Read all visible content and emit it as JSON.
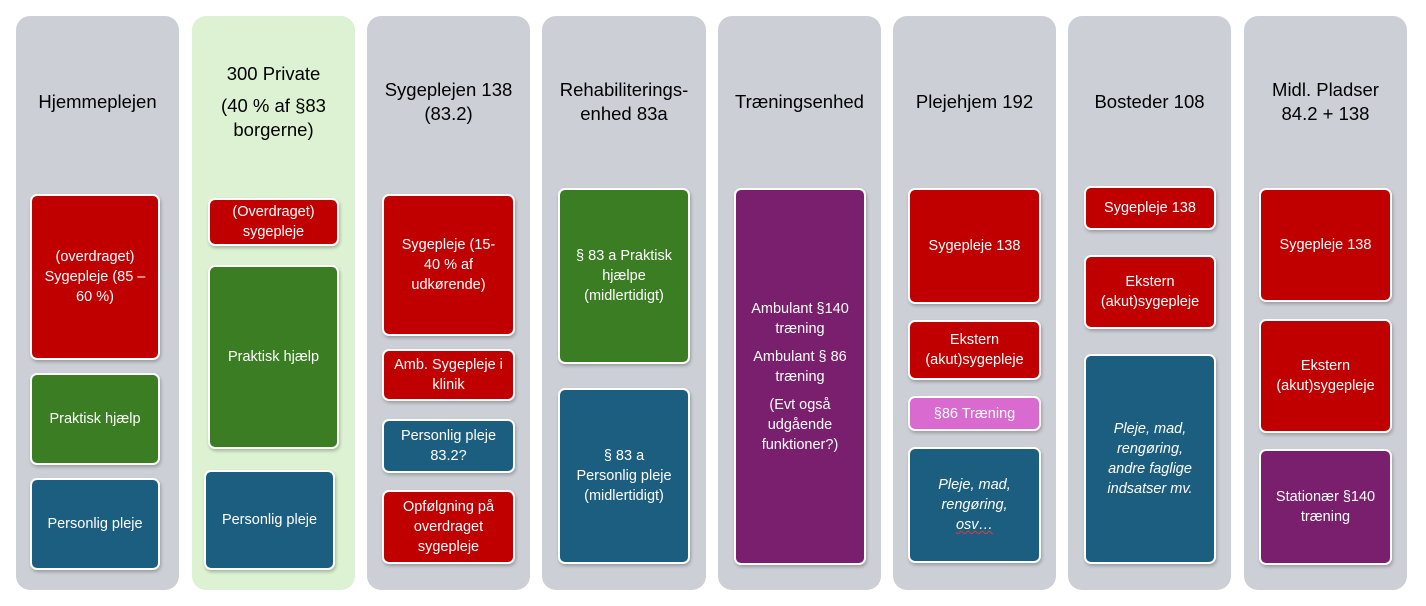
{
  "colors": {
    "column": "#ccd0d6",
    "private_column": "#dcf2d2",
    "red": "#c00000",
    "green": "#3a7d22",
    "blue": "#1b5e80",
    "purple": "#7a1e6e",
    "pink": "#d86ad0"
  },
  "columns": [
    {
      "heading": [
        "Hjemmeplejen"
      ],
      "boxes": [
        {
          "lines": [
            "(overdraget)",
            "Sygepleje (85 –",
            "60 %)"
          ]
        },
        {
          "lines": [
            "Praktisk hjælp"
          ]
        },
        {
          "lines": [
            "Personlig pleje"
          ]
        }
      ]
    },
    {
      "heading": [
        "300 Private",
        "",
        "(40 % af §83",
        "borgerne)"
      ],
      "boxes": [
        {
          "lines": [
            "(Overdraget)",
            "sygepleje"
          ]
        },
        {
          "lines": [
            "Praktisk hjælp"
          ]
        },
        {
          "lines": [
            "Personlig pleje"
          ]
        }
      ]
    },
    {
      "heading": [
        "Sygeplejen 138",
        "(83.2)"
      ],
      "boxes": [
        {
          "lines": [
            "Sygepleje (15-",
            "40 % af",
            "udkørende)"
          ]
        },
        {
          "lines": [
            "Amb. Sygepleje i",
            "klinik"
          ]
        },
        {
          "lines": [
            "Personlig pleje",
            "83.2?"
          ]
        },
        {
          "lines": [
            "Opfølgning på",
            "overdraget",
            "sygepleje"
          ]
        }
      ]
    },
    {
      "heading": [
        "Rehabiliterings-",
        "enhed 83a"
      ],
      "boxes": [
        {
          "lines": [
            "§ 83 a Praktisk",
            "hjælpe",
            "(midlertidigt)"
          ]
        },
        {
          "lines": [
            "§ 83 a",
            "Personlig pleje",
            "(midlertidigt)"
          ]
        }
      ]
    },
    {
      "heading": [
        "Træningsenhed"
      ],
      "boxes": [
        {
          "lines": [
            "Ambulant §140",
            "træning",
            "",
            "Ambulant § 86",
            "træning",
            "",
            "(Evt også",
            "udgående",
            "funktioner?)"
          ]
        }
      ]
    },
    {
      "heading": [
        "Plejehjem 192"
      ],
      "boxes": [
        {
          "lines": [
            "Sygepleje 138"
          ]
        },
        {
          "lines": [
            "Ekstern",
            "(akut)sygepleje"
          ]
        },
        {
          "lines": [
            "§86 Træning"
          ]
        },
        {
          "lines": [
            "Pleje, mad,",
            "rengøring,",
            "osv…"
          ]
        }
      ]
    },
    {
      "heading": [
        "Bosteder 108"
      ],
      "boxes": [
        {
          "lines": [
            "Sygepleje 138"
          ]
        },
        {
          "lines": [
            "Ekstern",
            "(akut)sygepleje"
          ]
        },
        {
          "lines": [
            "Pleje, mad,",
            "rengøring,",
            "andre faglige",
            "indsatser mv."
          ]
        }
      ]
    },
    {
      "heading": [
        "Midl. Pladser",
        "84.2 + 138"
      ],
      "boxes": [
        {
          "lines": [
            "Sygepleje 138"
          ]
        },
        {
          "lines": [
            "Ekstern",
            "(akut)sygepleje"
          ]
        },
        {
          "lines": [
            "Stationær §140",
            "træning"
          ]
        }
      ]
    }
  ]
}
